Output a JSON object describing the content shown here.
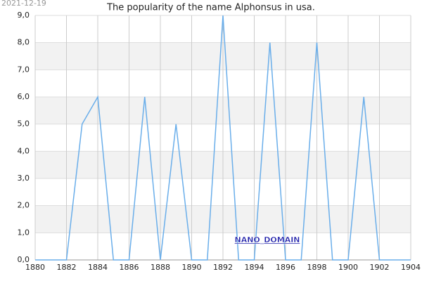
{
  "chart_data": {
    "type": "line",
    "date": "2021-12-19",
    "title": "The popularity of the name Alphonsus in usa.",
    "watermark": "NANO_DOMAIN",
    "x": [
      1880,
      1881,
      1882,
      1883,
      1884,
      1885,
      1886,
      1887,
      1888,
      1889,
      1890,
      1891,
      1892,
      1893,
      1894,
      1895,
      1896,
      1897,
      1898,
      1899,
      1900,
      1901,
      1902,
      1903,
      1904
    ],
    "series": [
      {
        "name": "Alphonsus",
        "color": "#6aaeea",
        "values": [
          0,
          0,
          0,
          5,
          6,
          0,
          0,
          6,
          0,
          5,
          0,
          0,
          9,
          0,
          0,
          8,
          0,
          0,
          8,
          0,
          0,
          6,
          0,
          0,
          0
        ]
      }
    ],
    "xlim": [
      1880,
      1904
    ],
    "xticks": [
      1880,
      1882,
      1884,
      1886,
      1888,
      1890,
      1892,
      1894,
      1896,
      1898,
      1900,
      1902,
      1904
    ],
    "ylim": [
      0,
      9
    ],
    "yticks": [
      {
        "value": 0,
        "label": "0,0"
      },
      {
        "value": 1,
        "label": "1,0"
      },
      {
        "value": 2,
        "label": "2,0"
      },
      {
        "value": 3,
        "label": "3,0"
      },
      {
        "value": 4,
        "label": "4,0"
      },
      {
        "value": 5,
        "label": "5,0"
      },
      {
        "value": 6,
        "label": "6,0"
      },
      {
        "value": 7,
        "label": "7,0"
      },
      {
        "value": 8,
        "label": "8,0"
      },
      {
        "value": 9,
        "label": "9,0"
      }
    ],
    "grid": true
  }
}
